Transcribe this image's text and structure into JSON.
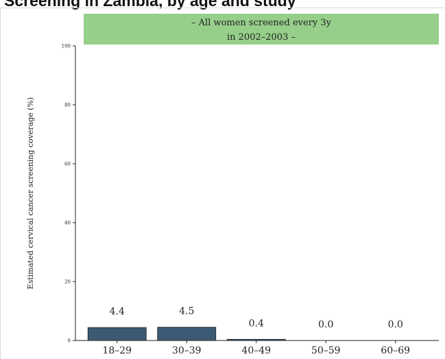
{
  "chart_data": {
    "type": "bar",
    "title": "Screening in Zambia, by age and study",
    "subtitle_line1": "– All women screened every 3y",
    "subtitle_line2": "in 2002–2003 –",
    "ylabel": "Estimated cervical cancer screening coverage (%)",
    "xlabel": "",
    "categories": [
      "18–29",
      "30–39",
      "40–49",
      "50–59",
      "60–69"
    ],
    "values": [
      4.4,
      4.5,
      0.4,
      0.0,
      0.0
    ],
    "value_labels": [
      "4.4",
      "4.5",
      "0.4",
      "0.0",
      "0.0"
    ],
    "ylim": [
      0,
      100
    ],
    "yticks": [
      0,
      20,
      40,
      60,
      80,
      100
    ],
    "ytick_labels": [
      "0",
      "20",
      "40",
      "60",
      "80",
      "100"
    ],
    "grid": false,
    "colors": {
      "bar": "#3d5a74",
      "bar_edge": "#1a1a1a",
      "header": "#96cf8a"
    }
  }
}
